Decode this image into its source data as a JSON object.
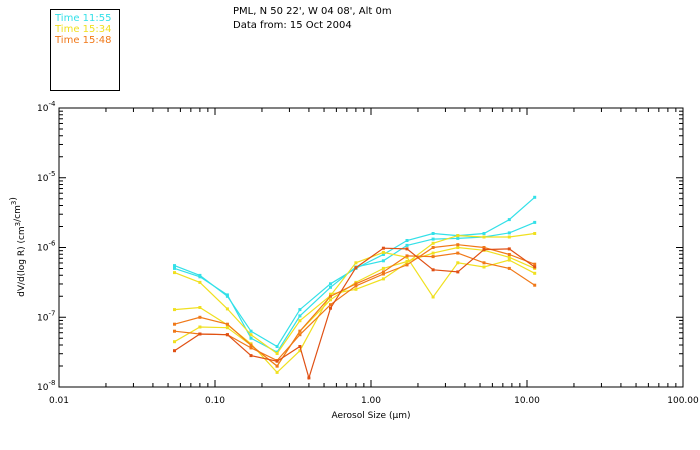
{
  "header": {
    "location": "PML, N 50 22', W 04 08', Alt 0m",
    "date_line": "Data from: 15 Oct 2004"
  },
  "legend": [
    {
      "label": "Time 11:55",
      "color": "#33e0e8"
    },
    {
      "label": "Time 15:34",
      "color": "#f0e020"
    },
    {
      "label": "Time 15:48",
      "color": "#f07818"
    }
  ],
  "chart_data": {
    "type": "line",
    "title": "",
    "xlabel": "Aerosol Size (μm)",
    "ylabel": "dV/d(log R) (cm³/cm³)",
    "x_scale": "log",
    "y_scale": "log",
    "xlim": [
      0.01,
      100
    ],
    "ylim_exponent": [
      -8,
      -4
    ],
    "x_ticks": [
      {
        "value": 0.01,
        "label": "0.01"
      },
      {
        "value": 0.1,
        "label": "0.10"
      },
      {
        "value": 1,
        "label": "1.00"
      },
      {
        "value": 10,
        "label": "10.00"
      },
      {
        "value": 100,
        "label": "100.00"
      }
    ],
    "y_ticks": [
      {
        "exp": -4,
        "base": "10",
        "sup": "-4"
      },
      {
        "exp": -5,
        "base": "10",
        "sup": "-5"
      },
      {
        "exp": -6,
        "base": "10",
        "sup": "-6"
      },
      {
        "exp": -7,
        "base": "10",
        "sup": "-7"
      },
      {
        "exp": -8,
        "base": "10",
        "sup": "-8"
      }
    ],
    "grid": false,
    "series": [
      {
        "name": "Time 11:55",
        "color": "#33e0e8",
        "x": [
          0.055,
          0.08,
          0.12,
          0.17,
          0.25,
          0.35,
          0.55,
          0.8,
          1.2,
          1.7,
          2.5,
          3.6,
          5.3,
          7.7,
          11.2
        ],
        "log_y": [
          -6.26,
          -6.4,
          -6.7,
          -7.2,
          -7.42,
          -6.89,
          -6.52,
          -6.3,
          -6.1,
          -5.9,
          -5.8,
          -5.83,
          -5.8,
          -5.6,
          -5.28
        ]
      },
      {
        "name": "Time 11:55",
        "color": "#33e0e8",
        "x": [
          0.055,
          0.08,
          0.12,
          0.17,
          0.25,
          0.35,
          0.55,
          0.8,
          1.2,
          1.7,
          2.5,
          3.6,
          5.3,
          7.7,
          11.2
        ],
        "log_y": [
          -6.3,
          -6.42,
          -6.68,
          -7.3,
          -7.5,
          -6.98,
          -6.57,
          -6.28,
          -6.19,
          -5.97,
          -5.88,
          -5.87,
          -5.85,
          -5.79,
          -5.64
        ]
      },
      {
        "name": "Time 15:34",
        "color": "#f0e020",
        "x": [
          0.055,
          0.08,
          0.12,
          0.17,
          0.25,
          0.35,
          0.55,
          0.8,
          1.2,
          1.7,
          2.5,
          3.6,
          5.3,
          7.7,
          11.2
        ],
        "log_y": [
          -6.36,
          -6.5,
          -6.88,
          -7.25,
          -7.52,
          -7.05,
          -6.69,
          -6.22,
          -6.07,
          -6.14,
          -6.71,
          -6.22,
          -6.28,
          -6.18,
          -6.37
        ]
      },
      {
        "name": "Time 15:34",
        "color": "#f0e020",
        "x": [
          0.055,
          0.08,
          0.12,
          0.17,
          0.25,
          0.35,
          0.55,
          0.8,
          1.2,
          1.7,
          2.5,
          3.6,
          5.3,
          7.7,
          11.2
        ],
        "log_y": [
          -6.89,
          -6.86,
          -7.11,
          -7.38,
          -7.79,
          -7.48,
          -6.67,
          -6.6,
          -6.45,
          -6.22,
          -5.94,
          -5.83,
          -5.85,
          -5.85,
          -5.8
        ]
      },
      {
        "name": "Time 15:34",
        "color": "#f0e020",
        "x": [
          0.055,
          0.08,
          0.12,
          0.17,
          0.25,
          0.35,
          0.55,
          0.8,
          1.2,
          1.7,
          2.5,
          3.6,
          5.3,
          7.7,
          11.2
        ],
        "log_y": [
          -7.35,
          -7.14,
          -7.15,
          -7.4,
          -7.7,
          -7.2,
          -6.75,
          -6.5,
          -6.3,
          -6.2,
          -6.08,
          -6.0,
          -6.04,
          -6.14,
          -6.3
        ]
      },
      {
        "name": "Time 15:48",
        "color": "#f07818",
        "x": [
          0.055,
          0.08,
          0.12,
          0.17,
          0.25,
          0.35,
          0.55,
          0.8,
          1.2,
          1.7,
          2.5,
          3.6,
          5.3,
          7.7,
          11.2
        ],
        "log_y": [
          -7.1,
          -7.0,
          -7.1,
          -7.4,
          -7.7,
          -7.2,
          -6.7,
          -6.52,
          -6.35,
          -6.12,
          -6.13,
          -6.08,
          -6.22,
          -6.3,
          -6.54
        ]
      },
      {
        "name": "Time 15:48",
        "color": "#f07818",
        "x": [
          0.055,
          0.08,
          0.12,
          0.17,
          0.25,
          0.35,
          0.55,
          0.8,
          1.2,
          1.7,
          2.5,
          3.6,
          5.3,
          7.7,
          11.2
        ],
        "log_y": [
          -7.2,
          -7.24,
          -7.25,
          -7.44,
          -7.62,
          -7.25,
          -6.82,
          -6.55,
          -6.38,
          -6.25,
          -6.0,
          -5.96,
          -6.0,
          -6.1,
          -6.24
        ]
      },
      {
        "name": "Time 15:48",
        "color": "#e05014",
        "x": [
          0.055,
          0.08,
          0.12,
          0.17,
          0.25,
          0.35,
          0.4,
          0.55,
          0.8,
          1.2,
          1.7,
          2.5,
          3.6,
          5.3,
          7.7,
          11.2
        ],
        "log_y": [
          -7.48,
          -7.24,
          -7.25,
          -7.55,
          -7.63,
          -7.42,
          -7.87,
          -6.87,
          -6.29,
          -6.01,
          -6.02,
          -6.32,
          -6.35,
          -6.03,
          -6.02,
          -6.28
        ]
      }
    ]
  }
}
